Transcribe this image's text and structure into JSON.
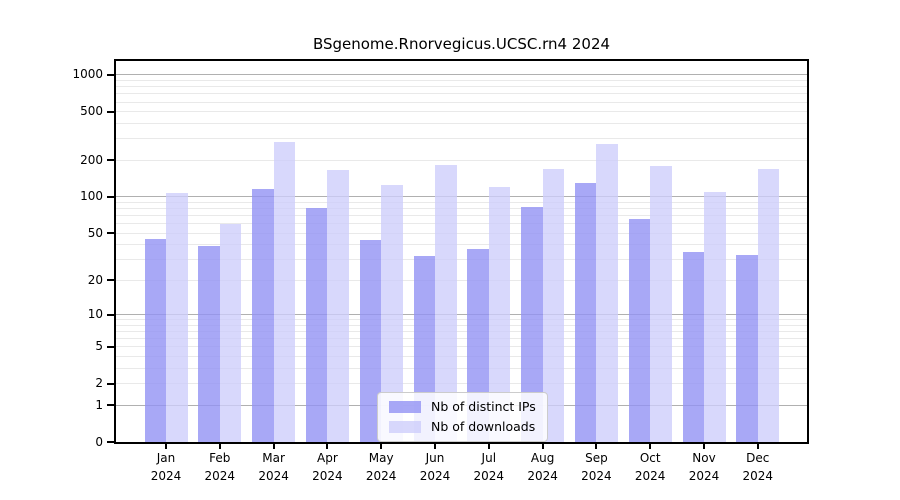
{
  "chart_data": {
    "type": "bar",
    "title": "BSgenome.Rnorvegicus.UCSC.rn4 2024",
    "categories": [
      "Jan 2024",
      "Feb 2024",
      "Mar 2024",
      "Apr 2024",
      "May 2024",
      "Jun 2024",
      "Jul 2024",
      "Aug 2024",
      "Sep 2024",
      "Oct 2024",
      "Nov 2024",
      "Dec 2024"
    ],
    "series": [
      {
        "name": "Nb of distinct IPs",
        "color": "#9292f4",
        "alpha": 0.8,
        "values": [
          45,
          39,
          117,
          81,
          44,
          32,
          37,
          82,
          131,
          66,
          35,
          33
        ]
      },
      {
        "name": "Nb of downloads",
        "color": "#cdcdfb",
        "alpha": 0.78,
        "values": [
          108,
          60,
          280,
          165,
          124,
          183,
          121,
          169,
          271,
          181,
          110,
          169
        ]
      }
    ],
    "xlabel": "",
    "ylabel": "",
    "yscale": "log10(value+1)",
    "ylim": [
      0,
      1300
    ],
    "yticks": [
      0,
      1,
      2,
      5,
      10,
      20,
      50,
      100,
      200,
      500,
      1000
    ],
    "grid": {
      "on": true,
      "orientation": "horizontal",
      "major_values": [
        1,
        10,
        100,
        1000
      ],
      "major_color": "#b0b0b0",
      "minor_color": "#e9e9e9"
    },
    "legend": {
      "position": "inside-bottom-center"
    },
    "frame_color": "#000000",
    "background_color": "#ffffff"
  }
}
